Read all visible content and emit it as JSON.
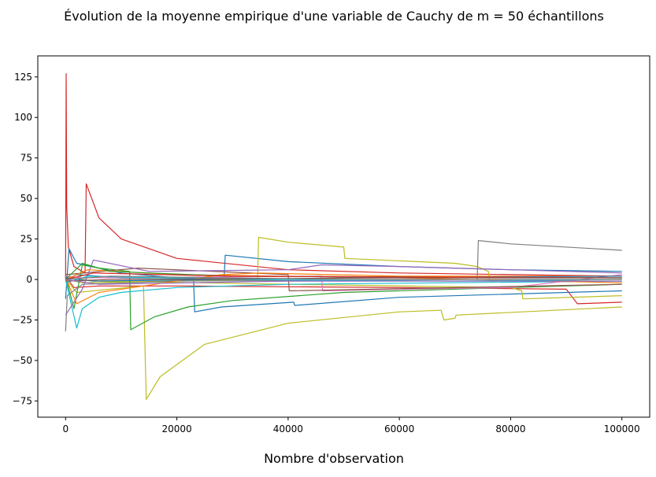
{
  "chart_data": {
    "type": "line",
    "title": "Évolution de la moyenne empirique d'une variable de Cauchy de m = 50 échantillons",
    "xlabel": "Nombre d'observation",
    "ylabel": "",
    "xlim": [
      -5000,
      105000
    ],
    "ylim": [
      -85,
      138
    ],
    "xticks": [
      0,
      20000,
      40000,
      60000,
      80000,
      100000
    ],
    "yticks": [
      -75,
      -50,
      -25,
      0,
      25,
      50,
      75,
      100,
      125
    ],
    "grid": false,
    "legend": "none",
    "series": [
      {
        "color": "#d62728",
        "values": [
          [
            0,
            0
          ],
          [
            100,
            127
          ],
          [
            200,
            45
          ],
          [
            500,
            20
          ],
          [
            1500,
            8
          ],
          [
            3500,
            4
          ],
          [
            3700,
            59
          ],
          [
            6000,
            38
          ],
          [
            10000,
            25
          ],
          [
            20000,
            13
          ],
          [
            40000,
            6
          ],
          [
            60000,
            4
          ],
          [
            100000,
            2
          ]
        ]
      },
      {
        "color": "#d62728",
        "values": [
          [
            0,
            2
          ],
          [
            1500,
            -5
          ],
          [
            6000,
            -4
          ],
          [
            20000,
            -4
          ],
          [
            60000,
            -5
          ],
          [
            90000,
            -6
          ],
          [
            92000,
            -15
          ],
          [
            100000,
            -14
          ]
        ]
      },
      {
        "color": "#1f77b4",
        "values": [
          [
            0,
            -12
          ],
          [
            600,
            19
          ],
          [
            2000,
            10
          ],
          [
            10000,
            4
          ],
          [
            23000,
            0
          ],
          [
            23200,
            -20
          ],
          [
            28000,
            -17
          ],
          [
            41000,
            -14
          ],
          [
            41200,
            -16
          ],
          [
            60000,
            -11
          ],
          [
            100000,
            -7
          ]
        ]
      },
      {
        "color": "#1f77b4",
        "values": [
          [
            0,
            0
          ],
          [
            2000,
            3
          ],
          [
            10000,
            1
          ],
          [
            28500,
            1
          ],
          [
            28700,
            15
          ],
          [
            40000,
            11
          ],
          [
            60000,
            8
          ],
          [
            80000,
            6
          ],
          [
            100000,
            5
          ]
        ]
      },
      {
        "color": "#bcbd22",
        "values": [
          [
            0,
            0
          ],
          [
            2000,
            -8
          ],
          [
            14000,
            -4
          ],
          [
            14500,
            -74
          ],
          [
            17000,
            -60
          ],
          [
            25000,
            -40
          ],
          [
            40000,
            -27
          ],
          [
            60000,
            -20
          ],
          [
            67500,
            -19
          ],
          [
            68000,
            -25
          ],
          [
            70000,
            -24
          ],
          [
            70200,
            -22
          ],
          [
            100000,
            -17
          ]
        ]
      },
      {
        "color": "#bcbd22",
        "values": [
          [
            0,
            0
          ],
          [
            3000,
            -2
          ],
          [
            34500,
            0
          ],
          [
            34700,
            26
          ],
          [
            40000,
            23
          ],
          [
            50000,
            20
          ],
          [
            50200,
            13
          ],
          [
            70000,
            10
          ],
          [
            74000,
            8
          ],
          [
            76000,
            5
          ],
          [
            76200,
            -1
          ],
          [
            100000,
            0
          ]
        ]
      },
      {
        "color": "#bcbd22",
        "values": [
          [
            0,
            1
          ],
          [
            6000,
            -1
          ],
          [
            40000,
            -3
          ],
          [
            80000,
            -5
          ],
          [
            82000,
            -7
          ],
          [
            82200,
            -12
          ],
          [
            100000,
            -10
          ]
        ]
      },
      {
        "color": "#7f7f7f",
        "values": [
          [
            0,
            -32
          ],
          [
            300,
            -10
          ],
          [
            3000,
            -3
          ],
          [
            20000,
            -1
          ],
          [
            74000,
            0
          ],
          [
            74200,
            24
          ],
          [
            80000,
            22
          ],
          [
            100000,
            18
          ]
        ]
      },
      {
        "color": "#2ca02c",
        "values": [
          [
            0,
            2
          ],
          [
            1500,
            -18
          ],
          [
            3000,
            9
          ],
          [
            6000,
            7
          ],
          [
            11500,
            5
          ],
          [
            11700,
            -31
          ],
          [
            16000,
            -23
          ],
          [
            22000,
            -17
          ],
          [
            30000,
            -13
          ],
          [
            50000,
            -8
          ],
          [
            100000,
            -3
          ]
        ]
      },
      {
        "color": "#17becf",
        "values": [
          [
            0,
            0
          ],
          [
            2000,
            -30
          ],
          [
            3000,
            -18
          ],
          [
            6000,
            -11
          ],
          [
            10000,
            -8
          ],
          [
            20000,
            -5
          ],
          [
            40000,
            -3
          ],
          [
            100000,
            -1
          ]
        ]
      },
      {
        "color": "#e377c2",
        "values": [
          [
            0,
            2
          ],
          [
            3000,
            1
          ],
          [
            46000,
            2
          ],
          [
            46200,
            -7
          ],
          [
            60000,
            -6
          ],
          [
            80000,
            -5
          ],
          [
            100000,
            3
          ]
        ]
      },
      {
        "color": "#8c564b",
        "values": [
          [
            0,
            3
          ],
          [
            13000,
            7
          ],
          [
            40000,
            3
          ],
          [
            40200,
            -7
          ],
          [
            100000,
            -3
          ]
        ]
      },
      {
        "color": "#9467bd",
        "values": [
          [
            0,
            -22
          ],
          [
            3000,
            -6
          ],
          [
            5000,
            12
          ],
          [
            15000,
            5
          ],
          [
            40000,
            6
          ],
          [
            46000,
            9
          ],
          [
            60000,
            8
          ],
          [
            100000,
            4
          ]
        ]
      },
      {
        "color": "#ff7f0e",
        "values": [
          [
            0,
            1
          ],
          [
            2000,
            -15
          ],
          [
            6000,
            -8
          ],
          [
            14000,
            -4
          ],
          [
            28000,
            3
          ],
          [
            35000,
            4
          ],
          [
            60000,
            2
          ],
          [
            100000,
            2
          ]
        ]
      },
      {
        "color": "#ff7f0e",
        "values": [
          [
            0,
            0
          ],
          [
            4000,
            6
          ],
          [
            20000,
            3
          ],
          [
            60000,
            1
          ],
          [
            100000,
            -2
          ]
        ]
      },
      {
        "color": "#2ca02c",
        "values": [
          [
            0,
            0
          ],
          [
            3000,
            10
          ],
          [
            8000,
            5
          ],
          [
            30000,
            2
          ],
          [
            100000,
            1
          ]
        ]
      },
      {
        "color": "#17becf",
        "values": [
          [
            0,
            -2
          ],
          [
            4000,
            2
          ],
          [
            30000,
            0
          ],
          [
            70000,
            -1
          ],
          [
            100000,
            0
          ]
        ]
      },
      {
        "color": "#1f77b4",
        "values": [
          [
            0,
            1
          ],
          [
            5000,
            -1
          ],
          [
            50000,
            1
          ],
          [
            100000,
            2
          ]
        ]
      },
      {
        "color": "#d62728",
        "values": [
          [
            0,
            0
          ],
          [
            5000,
            4
          ],
          [
            30000,
            2
          ],
          [
            100000,
            1
          ]
        ]
      },
      {
        "color": "#8c564b",
        "values": [
          [
            0,
            -1
          ],
          [
            8000,
            0
          ],
          [
            60000,
            1
          ],
          [
            100000,
            1
          ]
        ]
      },
      {
        "color": "#9467bd",
        "values": [
          [
            0,
            0
          ],
          [
            6000,
            -3
          ],
          [
            40000,
            -1
          ],
          [
            100000,
            -1
          ]
        ]
      },
      {
        "color": "#7f7f7f",
        "values": [
          [
            0,
            0
          ],
          [
            8000,
            2
          ],
          [
            50000,
            0
          ],
          [
            100000,
            0
          ]
        ]
      }
    ]
  }
}
